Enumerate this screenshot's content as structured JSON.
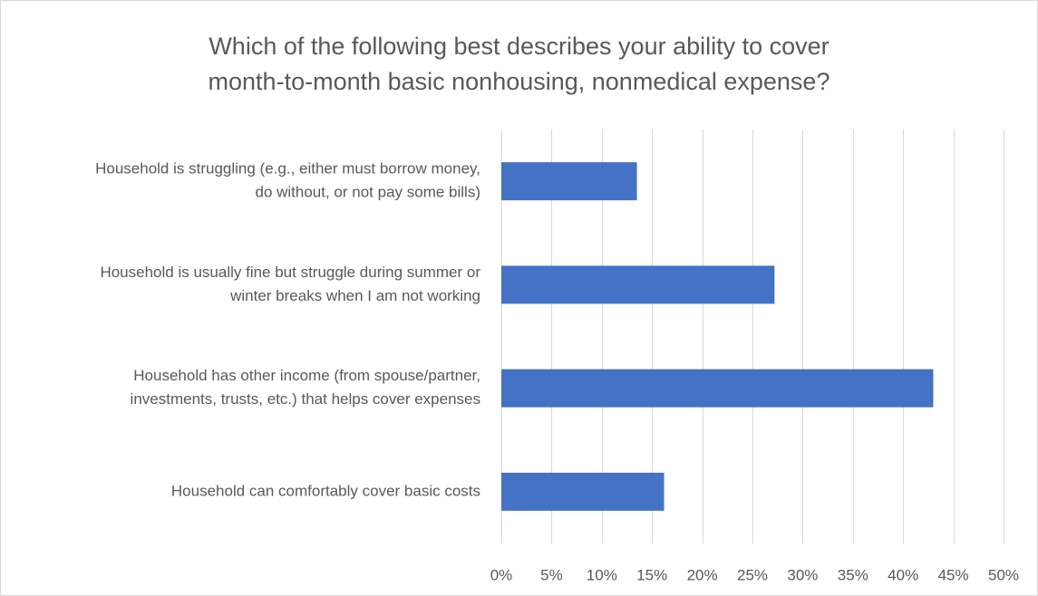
{
  "chart_data": {
    "type": "bar",
    "orientation": "horizontal",
    "title_lines": [
      "Which of the following best describes your ability to cover",
      "month-to-month basic nonhousing, nonmedical expense?"
    ],
    "categories": [
      [
        "Household is struggling (e.g., either must borrow money,",
        "do without, or not pay some bills)"
      ],
      [
        "Household is usually fine but struggle during summer or",
        "winter breaks when I am not working"
      ],
      [
        "Household has other income (from spouse/partner,",
        "investments, trusts, etc.) that helps cover expenses"
      ],
      [
        "Household can comfortably cover basic costs"
      ]
    ],
    "values": [
      13.5,
      27.2,
      43.0,
      16.2
    ],
    "xlim": [
      0,
      50
    ],
    "xticks": [
      0,
      5,
      10,
      15,
      20,
      25,
      30,
      35,
      40,
      45,
      50
    ],
    "xtick_labels": [
      "0%",
      "5%",
      "10%",
      "15%",
      "20%",
      "25%",
      "30%",
      "35%",
      "40%",
      "45%",
      "50%"
    ],
    "grid": "vertical",
    "legend": "none",
    "bar_color": "#4472c4",
    "grid_color": "#d9d9d9"
  }
}
